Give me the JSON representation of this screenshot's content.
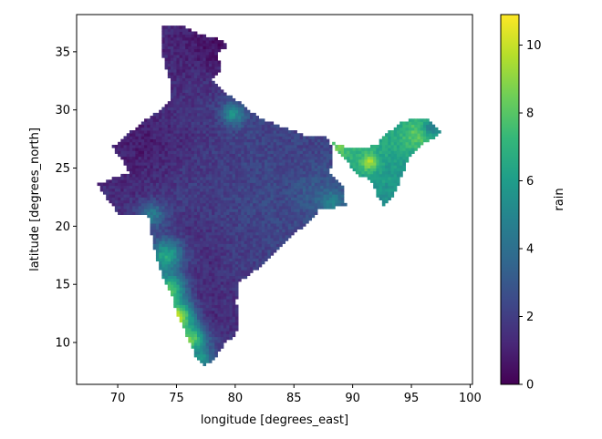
{
  "chart_data": {
    "type": "heatmap",
    "title": "",
    "xlabel": "longitude [degrees_east]",
    "ylabel": "latitude [degrees_north]",
    "xlim": [
      66.5,
      100.2
    ],
    "ylim": [
      6.4,
      38.2
    ],
    "xticks": [
      70,
      75,
      80,
      85,
      90,
      95,
      100
    ],
    "yticks": [
      10,
      15,
      20,
      25,
      30,
      35
    ],
    "colorbar": {
      "label": "rain",
      "min": 0,
      "max": 10.9,
      "ticks": [
        0,
        2,
        4,
        6,
        8,
        10
      ],
      "colormap": "viridis"
    },
    "colormap_stops": [
      "#440154",
      "#482878",
      "#3e4989",
      "#31688e",
      "#26828e",
      "#1f9e89",
      "#35b779",
      "#6ece58",
      "#b5de2b",
      "#fde725"
    ],
    "regions": [
      {
        "name": "mainland",
        "outline": [
          [
            73.7,
            37.2
          ],
          [
            75.5,
            37.3
          ],
          [
            76.5,
            36.7
          ],
          [
            78.8,
            36.0
          ],
          [
            79.3,
            35.5
          ],
          [
            78.5,
            34.8
          ],
          [
            78.8,
            33.4
          ],
          [
            78.1,
            32.6
          ],
          [
            79.0,
            31.6
          ],
          [
            80.5,
            30.6
          ],
          [
            81.0,
            30.1
          ],
          [
            82.5,
            29.1
          ],
          [
            84.5,
            28.4
          ],
          [
            86.0,
            27.8
          ],
          [
            88.0,
            27.6
          ],
          [
            88.2,
            26.5
          ],
          [
            88.3,
            25.6
          ],
          [
            88.0,
            24.5
          ],
          [
            89.3,
            23.3
          ],
          [
            89.4,
            21.7
          ],
          [
            87.2,
            21.5
          ],
          [
            86.5,
            20.5
          ],
          [
            84.8,
            19.2
          ],
          [
            83.6,
            18.0
          ],
          [
            82.2,
            16.6
          ],
          [
            81.2,
            15.8
          ],
          [
            80.3,
            15.3
          ],
          [
            80.1,
            13.5
          ],
          [
            80.3,
            11.5
          ],
          [
            79.8,
            10.3
          ],
          [
            79.3,
            10.2
          ],
          [
            78.3,
            8.7
          ],
          [
            77.4,
            8.0
          ],
          [
            76.6,
            8.9
          ],
          [
            76.0,
            10.3
          ],
          [
            75.1,
            12.4
          ],
          [
            74.6,
            14.0
          ],
          [
            73.8,
            15.7
          ],
          [
            73.2,
            17.7
          ],
          [
            72.8,
            19.6
          ],
          [
            72.6,
            21.0
          ],
          [
            70.2,
            20.9
          ],
          [
            69.2,
            22.2
          ],
          [
            68.3,
            23.6
          ],
          [
            69.5,
            24.1
          ],
          [
            71.0,
            24.6
          ],
          [
            70.3,
            25.8
          ],
          [
            69.5,
            26.8
          ],
          [
            70.7,
            27.8
          ],
          [
            72.0,
            28.9
          ],
          [
            73.3,
            29.8
          ],
          [
            74.5,
            30.9
          ],
          [
            74.6,
            32.3
          ],
          [
            74.0,
            33.8
          ],
          [
            73.7,
            35.3
          ],
          [
            73.7,
            37.2
          ]
        ],
        "low_values": [
          [
            79.0,
            35.8,
            0.3
          ],
          [
            77.7,
            35.2,
            0.4
          ],
          [
            75.5,
            34.0,
            1.2
          ],
          [
            76.8,
            32.0,
            1.6
          ],
          [
            72.3,
            27.0,
            0.5
          ],
          [
            71.2,
            25.5,
            0.9
          ],
          [
            75.3,
            27.3,
            1.2
          ],
          [
            73.0,
            24.0,
            1.4
          ],
          [
            77.5,
            28.5,
            1.7
          ],
          [
            78.5,
            26.2,
            1.9
          ],
          [
            76.0,
            22.5,
            2.1
          ],
          [
            76.5,
            19.5,
            1.4
          ],
          [
            78.0,
            17.0,
            1.2
          ],
          [
            76.8,
            14.5,
            1.2
          ],
          [
            78.6,
            12.2,
            1.2
          ],
          [
            78.0,
            9.5,
            2.0
          ],
          [
            81.0,
            22.0,
            2.4
          ],
          [
            84.5,
            25.4,
            2.3
          ],
          [
            82.5,
            23.0,
            2.5
          ],
          [
            86.5,
            23.0,
            3.3
          ],
          [
            83.0,
            19.5,
            2.5
          ],
          [
            80.0,
            17.5,
            2.1
          ],
          [
            81.6,
            26.0,
            2.3
          ],
          [
            80.0,
            29.5,
            3.3
          ]
        ],
        "hotspots": [
          [
            74.1,
            17.5,
            6.5,
            1.0
          ],
          [
            74.3,
            14.5,
            8.3,
            1.0
          ],
          [
            75.1,
            12.2,
            10.3,
            0.9
          ],
          [
            76.2,
            10.3,
            8.5,
            0.9
          ],
          [
            77.0,
            8.6,
            6.0,
            0.7
          ],
          [
            72.9,
            21.0,
            4.5,
            0.8
          ],
          [
            79.8,
            29.7,
            5.5,
            0.6
          ],
          [
            88.3,
            22.1,
            4.8,
            0.8
          ]
        ]
      },
      {
        "name": "northeast",
        "outline": [
          [
            88.1,
            28.0
          ],
          [
            88.4,
            27.2
          ],
          [
            89.5,
            26.8
          ],
          [
            92.0,
            26.9
          ],
          [
            92.7,
            27.8
          ],
          [
            94.2,
            29.0
          ],
          [
            95.3,
            29.3
          ],
          [
            96.5,
            29.2
          ],
          [
            97.5,
            28.2
          ],
          [
            97.0,
            27.6
          ],
          [
            96.0,
            27.2
          ],
          [
            95.0,
            26.2
          ],
          [
            94.5,
            25.2
          ],
          [
            94.0,
            23.8
          ],
          [
            93.3,
            22.3
          ],
          [
            92.6,
            21.8
          ],
          [
            92.1,
            22.6
          ],
          [
            91.7,
            23.6
          ],
          [
            91.2,
            24.1
          ],
          [
            90.3,
            24.5
          ],
          [
            89.7,
            25.3
          ],
          [
            89.1,
            26.0
          ],
          [
            88.5,
            26.5
          ],
          [
            88.1,
            28.0
          ]
        ],
        "low_values": [
          [
            90.4,
            26.2,
            7.3
          ],
          [
            93.8,
            26.9,
            6.8
          ],
          [
            91.0,
            25.0,
            6.2
          ],
          [
            93.0,
            24.0,
            6.0
          ],
          [
            92.5,
            22.5,
            5.2
          ],
          [
            94.2,
            24.6,
            5.5
          ]
        ],
        "hotspots": [
          [
            88.6,
            26.8,
            8.5,
            0.6
          ],
          [
            95.6,
            27.9,
            8.2,
            0.9
          ],
          [
            91.4,
            25.5,
            9.6,
            0.5
          ],
          [
            96.7,
            28.5,
            4.5,
            0.5
          ]
        ]
      }
    ]
  }
}
